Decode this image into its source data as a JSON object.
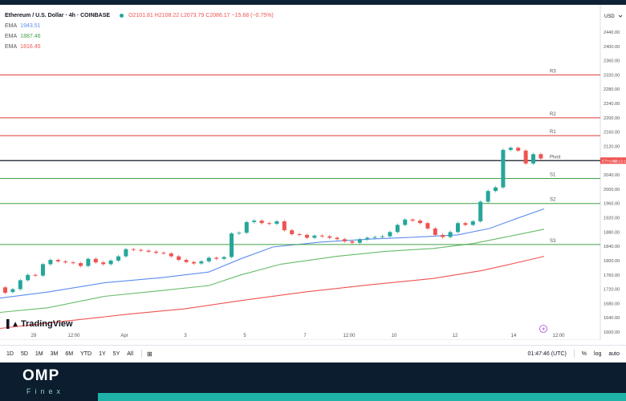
{
  "legend": {
    "symbol": "Ethereum / U.S. Dollar · 4h · COINBASE",
    "ohlc": "O2101.81 H2108.22 L2073.79 C2086.17 −15.68 (−0.75%)",
    "ema_label": "EMA",
    "ema1": "1943.51",
    "ema2": "1887.46",
    "ema3": "1816.45"
  },
  "colors": {
    "up": "#26a69a",
    "down": "#ef5350",
    "ema_fast": "#5b8def",
    "ema_mid": "#66bb6a",
    "ema_slow": "#ef5350",
    "resistance": "#e53935",
    "support": "#43a047",
    "pivot": "#131722"
  },
  "price_axis": {
    "currency": "USD",
    "ticks": [
      "2440.00",
      "2400.00",
      "2360.00",
      "2320.00",
      "2280.00",
      "2240.00",
      "2200.00",
      "2160.00",
      "2120.00",
      "2080.00",
      "2040.00",
      "2000.00",
      "1960.00",
      "1920.00",
      "1880.00",
      "1840.00",
      "1800.00",
      "1760.00",
      "1720.00",
      "1680.00",
      "1640.00",
      "1600.00"
    ],
    "badge": {
      "symbol": "ETHUSD",
      "time": "02:12:14"
    }
  },
  "levels": [
    {
      "label": "R3",
      "price": 2320,
      "kind": "resistance"
    },
    {
      "label": "R2",
      "price": 2200,
      "kind": "resistance"
    },
    {
      "label": "R1",
      "price": 2150,
      "kind": "resistance"
    },
    {
      "label": "Pivot",
      "price": 2080,
      "kind": "pivot"
    },
    {
      "label": "S1",
      "price": 2030,
      "kind": "support"
    },
    {
      "label": "S2",
      "price": 1960,
      "kind": "support"
    },
    {
      "label": "S3",
      "price": 1845,
      "kind": "support"
    }
  ],
  "time_axis": [
    "29",
    "12:00",
    "Apr",
    "3",
    "5",
    "7",
    "12:00",
    "10",
    "12",
    "14",
    "12:00"
  ],
  "logo_text": "TradingView",
  "bottom": {
    "ranges": [
      "1D",
      "5D",
      "1M",
      "3M",
      "6M",
      "YTD",
      "1Y",
      "5Y",
      "All"
    ],
    "time": "01:47:46 (UTC)",
    "percent": "%",
    "log": "log",
    "auto": "auto"
  },
  "footer": {
    "brand": "OMP",
    "sub": "Finex"
  }
}
